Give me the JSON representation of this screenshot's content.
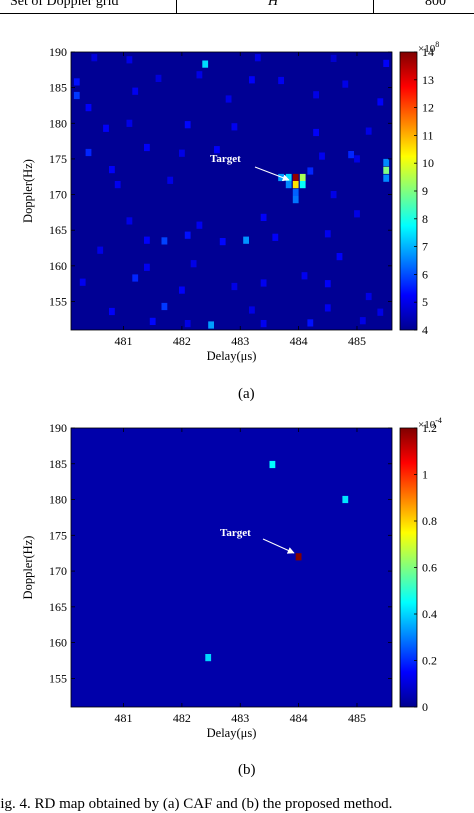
{
  "table_row": {
    "label": "Set of Doppler grid",
    "symbol": "H",
    "value": "800"
  },
  "chart_data": [
    {
      "type": "heatmap",
      "panel": "(a)",
      "xlabel": "Delay(μs)",
      "ylabel": "Doppler(Hz)",
      "xticks": [
        "481",
        "482",
        "483",
        "484",
        "485"
      ],
      "yticks": [
        "155",
        "160",
        "165",
        "170",
        "175",
        "180",
        "185",
        "190"
      ],
      "xlim": [
        480.1,
        485.6
      ],
      "ylim": [
        151,
        190
      ],
      "colorbar": {
        "min": 4,
        "max": 14,
        "ticks": [
          "4",
          "5",
          "6",
          "7",
          "8",
          "9",
          "10",
          "11",
          "12",
          "13",
          "14"
        ],
        "exponent": "×10^8"
      },
      "background_value": 4.2,
      "annotation": {
        "text": "Target",
        "x": 483.93,
        "y": 172.5
      },
      "cells": [
        {
          "x": 480.5,
          "y": 189.2,
          "v": 4.9
        },
        {
          "x": 481.1,
          "y": 188.9,
          "v": 5.0
        },
        {
          "x": 482.4,
          "y": 188.3,
          "v": 7.4
        },
        {
          "x": 483.3,
          "y": 189.2,
          "v": 5.0
        },
        {
          "x": 484.6,
          "y": 189.1,
          "v": 4.8
        },
        {
          "x": 485.5,
          "y": 188.4,
          "v": 5.2
        },
        {
          "x": 480.2,
          "y": 185.8,
          "v": 5.4
        },
        {
          "x": 481.6,
          "y": 186.3,
          "v": 4.9
        },
        {
          "x": 482.3,
          "y": 186.8,
          "v": 5.0
        },
        {
          "x": 483.2,
          "y": 186.1,
          "v": 5.2
        },
        {
          "x": 483.7,
          "y": 186.0,
          "v": 5.1
        },
        {
          "x": 484.8,
          "y": 185.5,
          "v": 5.0
        },
        {
          "x": 480.2,
          "y": 183.9,
          "v": 5.8
        },
        {
          "x": 481.2,
          "y": 184.5,
          "v": 5.1
        },
        {
          "x": 482.8,
          "y": 183.4,
          "v": 5.0
        },
        {
          "x": 484.3,
          "y": 184.0,
          "v": 5.0
        },
        {
          "x": 485.4,
          "y": 183.0,
          "v": 5.2
        },
        {
          "x": 480.4,
          "y": 182.2,
          "v": 5.2
        },
        {
          "x": 480.7,
          "y": 179.3,
          "v": 5.2
        },
        {
          "x": 481.1,
          "y": 180.0,
          "v": 5.0
        },
        {
          "x": 482.1,
          "y": 179.8,
          "v": 5.3
        },
        {
          "x": 482.9,
          "y": 179.5,
          "v": 5.1
        },
        {
          "x": 484.3,
          "y": 178.7,
          "v": 5.2
        },
        {
          "x": 485.2,
          "y": 178.9,
          "v": 5.0
        },
        {
          "x": 480.4,
          "y": 175.9,
          "v": 5.6
        },
        {
          "x": 481.4,
          "y": 176.6,
          "v": 5.2
        },
        {
          "x": 482.0,
          "y": 175.8,
          "v": 5.0
        },
        {
          "x": 482.6,
          "y": 176.3,
          "v": 5.2
        },
        {
          "x": 484.4,
          "y": 175.4,
          "v": 5.1
        },
        {
          "x": 484.9,
          "y": 175.6,
          "v": 5.6
        },
        {
          "x": 485.0,
          "y": 175.0,
          "v": 5.0
        },
        {
          "x": 485.5,
          "y": 174.5,
          "v": 6.6
        },
        {
          "x": 485.5,
          "y": 173.4,
          "v": 9.0
        },
        {
          "x": 485.5,
          "y": 172.3,
          "v": 6.6
        },
        {
          "x": 480.8,
          "y": 173.5,
          "v": 5.2
        },
        {
          "x": 480.9,
          "y": 171.4,
          "v": 5.1
        },
        {
          "x": 481.8,
          "y": 172.0,
          "v": 5.0
        },
        {
          "x": 484.6,
          "y": 170.0,
          "v": 5.0
        },
        {
          "x": 483.7,
          "y": 172.4,
          "v": 6.8
        },
        {
          "x": 483.83,
          "y": 172.4,
          "v": 7.4
        },
        {
          "x": 483.95,
          "y": 172.4,
          "v": 13.8
        },
        {
          "x": 484.07,
          "y": 172.4,
          "v": 9.4
        },
        {
          "x": 483.83,
          "y": 171.4,
          "v": 6.6
        },
        {
          "x": 483.95,
          "y": 171.4,
          "v": 10.5
        },
        {
          "x": 484.07,
          "y": 171.4,
          "v": 7.8
        },
        {
          "x": 483.95,
          "y": 170.3,
          "v": 6.2
        },
        {
          "x": 483.95,
          "y": 169.3,
          "v": 6.4
        },
        {
          "x": 484.2,
          "y": 173.3,
          "v": 5.6
        },
        {
          "x": 481.1,
          "y": 166.3,
          "v": 5.0
        },
        {
          "x": 482.3,
          "y": 165.7,
          "v": 5.1
        },
        {
          "x": 483.4,
          "y": 166.8,
          "v": 5.2
        },
        {
          "x": 485.0,
          "y": 167.3,
          "v": 5.0
        },
        {
          "x": 481.4,
          "y": 163.6,
          "v": 5.2
        },
        {
          "x": 481.7,
          "y": 163.5,
          "v": 5.9
        },
        {
          "x": 482.1,
          "y": 164.3,
          "v": 5.4
        },
        {
          "x": 482.7,
          "y": 163.4,
          "v": 5.3
        },
        {
          "x": 483.1,
          "y": 163.6,
          "v": 6.7
        },
        {
          "x": 483.6,
          "y": 164.0,
          "v": 5.2
        },
        {
          "x": 484.5,
          "y": 164.5,
          "v": 5.1
        },
        {
          "x": 480.6,
          "y": 162.2,
          "v": 5.0
        },
        {
          "x": 484.7,
          "y": 161.3,
          "v": 5.2
        },
        {
          "x": 481.4,
          "y": 159.8,
          "v": 5.1
        },
        {
          "x": 482.2,
          "y": 160.3,
          "v": 5.0
        },
        {
          "x": 484.1,
          "y": 158.6,
          "v": 5.1
        },
        {
          "x": 480.3,
          "y": 157.7,
          "v": 5.1
        },
        {
          "x": 481.2,
          "y": 158.3,
          "v": 5.6
        },
        {
          "x": 482.0,
          "y": 156.6,
          "v": 5.2
        },
        {
          "x": 482.9,
          "y": 157.1,
          "v": 5.0
        },
        {
          "x": 483.4,
          "y": 157.6,
          "v": 5.1
        },
        {
          "x": 484.5,
          "y": 157.5,
          "v": 5.2
        },
        {
          "x": 485.2,
          "y": 155.7,
          "v": 5.0
        },
        {
          "x": 481.7,
          "y": 154.3,
          "v": 5.8
        },
        {
          "x": 480.8,
          "y": 153.6,
          "v": 5.2
        },
        {
          "x": 483.2,
          "y": 153.8,
          "v": 5.0
        },
        {
          "x": 484.5,
          "y": 154.1,
          "v": 5.1
        },
        {
          "x": 485.4,
          "y": 153.5,
          "v": 5.0
        },
        {
          "x": 481.5,
          "y": 152.2,
          "v": 5.3
        },
        {
          "x": 482.1,
          "y": 151.9,
          "v": 5.0
        },
        {
          "x": 482.5,
          "y": 151.7,
          "v": 6.8
        },
        {
          "x": 483.4,
          "y": 151.9,
          "v": 5.1
        },
        {
          "x": 484.2,
          "y": 152.0,
          "v": 5.4
        },
        {
          "x": 485.1,
          "y": 152.3,
          "v": 5.0
        }
      ]
    },
    {
      "type": "heatmap",
      "panel": "(b)",
      "xlabel": "Delay(μs)",
      "ylabel": "Doppler(Hz)",
      "xticks": [
        "481",
        "482",
        "483",
        "484",
        "485"
      ],
      "yticks": [
        "155",
        "160",
        "165",
        "170",
        "175",
        "180",
        "185",
        "190"
      ],
      "xlim": [
        480.1,
        485.6
      ],
      "ylim": [
        151,
        190
      ],
      "colorbar": {
        "min": 0,
        "max": 1.2,
        "ticks": [
          "0",
          "0.2",
          "0.4",
          "0.6",
          "0.8",
          "1",
          "1.2"
        ],
        "exponent": "×10^-4"
      },
      "background_value": 0.05,
      "annotation": {
        "text": "Target",
        "x": 484.0,
        "y": 172.0
      },
      "cells": [
        {
          "x": 483.55,
          "y": 184.9,
          "v": 0.45
        },
        {
          "x": 484.8,
          "y": 180.0,
          "v": 0.42
        },
        {
          "x": 484.0,
          "y": 172.0,
          "v": 1.2
        },
        {
          "x": 482.45,
          "y": 157.9,
          "v": 0.4
        }
      ]
    }
  ],
  "captions": {
    "a": "(a)",
    "b": "(b)",
    "figure": "Fig. 4. RD map obtained by (a) CAF and (b) the proposed method."
  }
}
